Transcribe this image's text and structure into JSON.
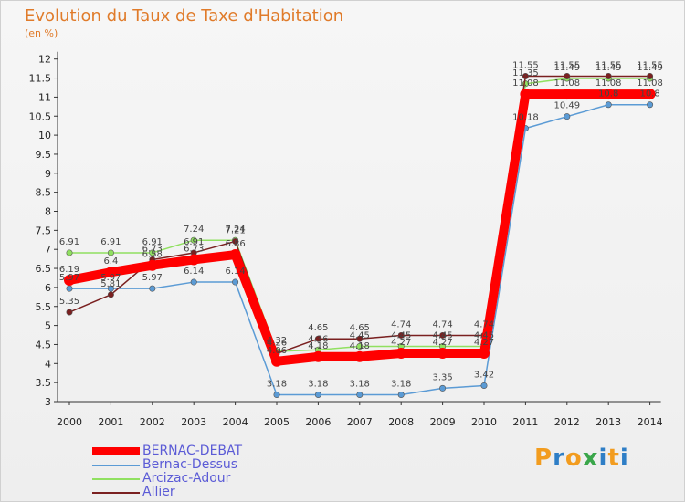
{
  "header": {
    "title": "Evolution du Taux de Taxe d'Habitation",
    "unit": "(en %)"
  },
  "logo": {
    "text": "Proxiti",
    "letters": [
      "P",
      "r",
      "o",
      "x",
      "i",
      "t",
      "i"
    ],
    "colors": [
      "#f29c1f",
      "#2e7ec6",
      "#f29c1f",
      "#3aa64a",
      "#2e7ec6",
      "#f29c1f",
      "#2e7ec6"
    ]
  },
  "chart_data": {
    "type": "line",
    "title": "Evolution du Taux de Taxe d'Habitation",
    "ylabel": "(en %)",
    "xlabel": "",
    "x": [
      "2000",
      "2001",
      "2002",
      "2003",
      "2004",
      "2005",
      "2006",
      "2007",
      "2008",
      "2009",
      "2010",
      "2011",
      "2012",
      "2013",
      "2014"
    ],
    "ylim": [
      3,
      12
    ],
    "yticks": [
      "3",
      "3.5",
      "4",
      "4.5",
      "5",
      "5.5",
      "6",
      "6.5",
      "7",
      "7.5",
      "8",
      "8.5",
      "9",
      "9.5",
      "10",
      "10.5",
      "11",
      "11.5",
      "12"
    ],
    "grid": false,
    "legend_position": "bottom-left",
    "series": [
      {
        "name": "BERNAC-DEBAT",
        "color": "#ff0000",
        "values": [
          6.19,
          6.4,
          6.58,
          6.73,
          6.86,
          4.06,
          4.18,
          4.18,
          4.27,
          4.27,
          4.27,
          11.08,
          11.08,
          11.08,
          11.08
        ],
        "labels": [
          "6.19",
          "6.4",
          "6.58",
          "6.73",
          "6.86",
          "4.06",
          "4.18",
          "4.18",
          "4.27",
          "4.27",
          "4.27",
          "11.08",
          "11.08",
          "11.08",
          "11.08"
        ]
      },
      {
        "name": "Bernac-Dessus",
        "color": "#5b9bd5",
        "values": [
          5.97,
          5.97,
          5.97,
          6.14,
          6.14,
          3.18,
          3.18,
          3.18,
          3.18,
          3.35,
          3.42,
          10.18,
          10.49,
          10.8,
          10.8
        ],
        "labels": [
          "5.97",
          "5.97",
          "5.97",
          "6.14",
          "6.14",
          "3.18",
          "3.18",
          "3.18",
          "3.18",
          "3.35",
          "3.42",
          "10.18",
          "10.49",
          "10.8",
          "10.8"
        ]
      },
      {
        "name": "Arcizac-Adour",
        "color": "#90e060",
        "values": [
          6.91,
          6.91,
          6.91,
          7.24,
          7.24,
          4.32,
          4.36,
          4.45,
          4.45,
          4.45,
          4.45,
          11.35,
          11.49,
          11.49,
          11.49
        ],
        "labels": [
          "6.91",
          "6.91",
          "6.91",
          "7.24",
          "7.24",
          "4.32",
          "4.36",
          "4.45",
          "4.45",
          "4.45",
          "4.45",
          "11.35",
          "11.49",
          "11.49",
          "11.49"
        ]
      },
      {
        "name": "Allier",
        "color": "#7a2020",
        "values": [
          5.35,
          5.81,
          6.73,
          6.91,
          7.21,
          4.26,
          4.65,
          4.65,
          4.74,
          4.74,
          4.74,
          11.55,
          11.55,
          11.55,
          11.55
        ],
        "labels": [
          "5.35",
          "5.81",
          "6.73",
          "6.91",
          "7.21",
          "4.26",
          "4.65",
          "4.65",
          "4.74",
          "4.74",
          "4.74",
          "11.55",
          "11.55",
          "11.55",
          "11.55"
        ]
      }
    ]
  }
}
